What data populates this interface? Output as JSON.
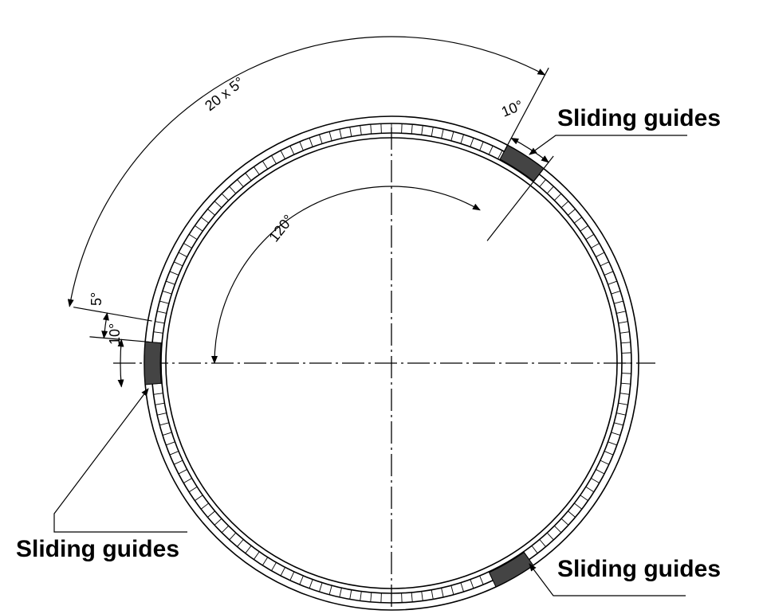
{
  "labels": {
    "top_right": "Sliding guides",
    "left": "Sliding guides",
    "bottom_right": "Sliding guides"
  },
  "dimensions": {
    "pattern": "20 x 5°",
    "guide_width": "10°",
    "spacing": "120°",
    "step": "5°",
    "left_guide": "10°"
  },
  "colors": {
    "line": "#000000",
    "guide_fill": "#444444",
    "background": "#ffffff"
  }
}
